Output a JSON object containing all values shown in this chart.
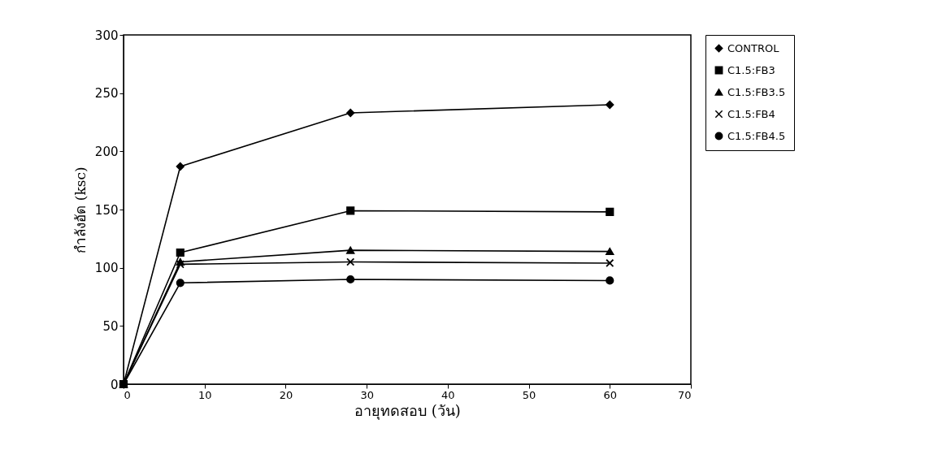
{
  "chart_data": {
    "type": "line",
    "xlabel": "อายุทดสอบ (วัน)",
    "ylabel": "กำลังอัด (ksc)",
    "x": [
      0,
      7,
      28,
      60
    ],
    "series": [
      {
        "name": "CONTROL",
        "color": "#000000",
        "marker": "diamond",
        "values": [
          0,
          187,
          233,
          240
        ]
      },
      {
        "name": "C1.5:FB3",
        "color": "#000000",
        "marker": "square",
        "values": [
          0,
          113,
          149,
          148
        ]
      },
      {
        "name": "C1.5:FB3.5",
        "color": "#000000",
        "marker": "triangle",
        "values": [
          0,
          105,
          115,
          114
        ]
      },
      {
        "name": "C1.5:FB4",
        "color": "#000000",
        "marker": "cross",
        "values": [
          0,
          103,
          105,
          104
        ]
      },
      {
        "name": "C1.5:FB4.5",
        "color": "#000000",
        "marker": "circle",
        "values": [
          0,
          87,
          90,
          89
        ]
      }
    ],
    "xlim": [
      0,
      70
    ],
    "xticks": [
      0,
      10,
      20,
      30,
      40,
      50,
      60,
      70
    ],
    "ylim": [
      0,
      300
    ],
    "yticks": [
      0,
      50,
      100,
      150,
      200,
      250,
      300
    ],
    "grid": false,
    "legend": "right",
    "line_style": "solid"
  }
}
